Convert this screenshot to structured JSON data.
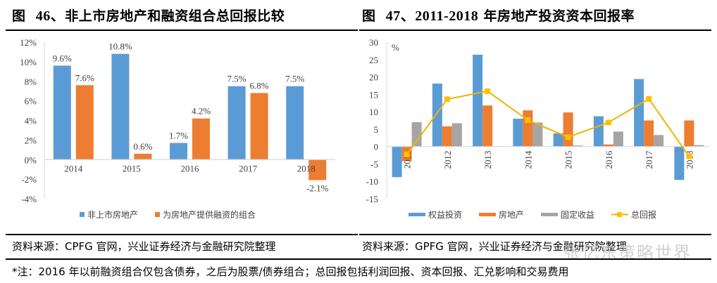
{
  "left": {
    "title_prefix": "图",
    "title_num": "46、",
    "title_text": "非上市房地产和融资组合总回报比较",
    "source": "资料来源：CPFG 官网，兴业证券经济与金融研究院整理"
  },
  "right": {
    "title_prefix": "图",
    "title_num": "47、2011-2018",
    "title_text": "年房地产投资资本回报率",
    "source": "资料来源：GPFG 官网，兴业证券经济与金融研究院整理"
  },
  "note": "*注：2016 年以前融资组合仅包含债券，之后为股票/债券组合；总回报包括利润回报、资本回报、汇兑影响和交易费用",
  "watermark": "张忆东策略世界",
  "colors": {
    "blue": "#5b9bd5",
    "orange": "#ed7d31",
    "gray": "#a5a5a5",
    "gold": "#ffc000",
    "line": "#f0b400"
  },
  "chart_data": [
    {
      "type": "bar",
      "title": "非上市房地产和融资组合总回报比较",
      "categories": [
        "2014",
        "2015",
        "2016",
        "2017",
        "2018"
      ],
      "series": [
        {
          "name": "非上市房地产",
          "values": [
            9.6,
            10.8,
            1.7,
            7.5,
            7.5
          ],
          "labels": [
            "9.6%",
            "10.8%",
            "1.7%",
            "7.5%",
            "7.5%"
          ]
        },
        {
          "name": "为房地产提供融资的组合",
          "values": [
            7.6,
            0.6,
            4.2,
            6.8,
            -2.1
          ],
          "labels": [
            "7.6%",
            "0.6%",
            "4.2%",
            "6.8%",
            "-2.1%"
          ]
        }
      ],
      "yticks": [
        "12%",
        "10%",
        "8%",
        "6%",
        "4%",
        "2%",
        "0%",
        "-2%",
        "-4%"
      ],
      "ylim": [
        -4,
        12
      ],
      "xlabel": "",
      "ylabel": "",
      "legend": "bottom",
      "grid": false
    },
    {
      "type": "bar",
      "title": "2011-2018年房地产投资资本回报率",
      "categories": [
        "2011",
        "2012",
        "2013",
        "2014",
        "2015",
        "2016",
        "2017",
        "2018"
      ],
      "series": [
        {
          "name": "权益投资",
          "type": "bar",
          "values": [
            -8.8,
            18.1,
            26.4,
            8.0,
            3.8,
            8.7,
            19.4,
            -9.6
          ]
        },
        {
          "name": "房地产",
          "type": "bar",
          "values": [
            -4.2,
            5.8,
            11.8,
            10.4,
            9.8,
            0.6,
            7.5,
            7.5
          ]
        },
        {
          "name": "固定收益",
          "type": "bar",
          "values": [
            7.0,
            6.7,
            0.1,
            6.9,
            0.3,
            4.3,
            3.3,
            0.4
          ]
        },
        {
          "name": "总回报",
          "type": "line",
          "values": [
            -2.3,
            13.6,
            15.9,
            7.6,
            2.7,
            6.9,
            13.7,
            -2.8
          ]
        }
      ],
      "ylabel": "%",
      "yticks": [
        "30",
        "25",
        "20",
        "15",
        "10",
        "5",
        "0",
        "-5",
        "-10",
        "-15"
      ],
      "ylim": [
        -15,
        30
      ],
      "legend": "bottom",
      "grid": false
    }
  ]
}
